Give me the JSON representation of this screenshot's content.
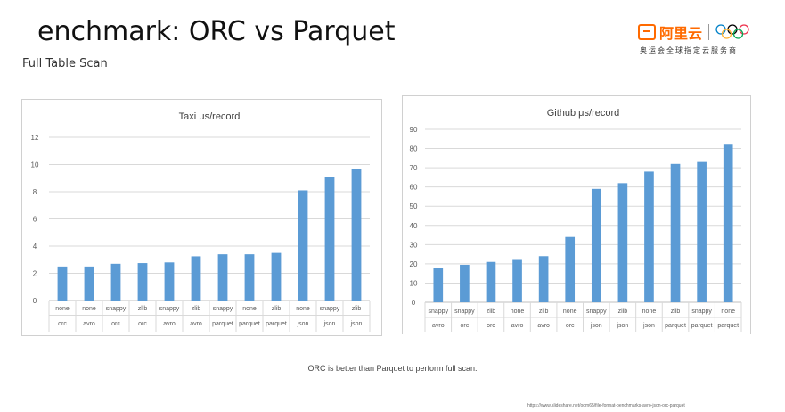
{
  "slide": {
    "title": "enchmark: ORC vs Parquet",
    "subtitle": "Full Table Scan",
    "caption": "ORC is better than Parquet to perform full scan.",
    "footnote": "https://www.slideshare.net/oom65/file-format-benchmarks-avro-json-orc-parquet"
  },
  "logo": {
    "brand": "阿里云",
    "tagline": "奥运会全球指定云服务商",
    "brand_color": "#ff6a00"
  },
  "colors": {
    "bar": "#5b9bd5",
    "grid": "#d9d9d9",
    "axis_text": "#595959"
  },
  "chart_data": [
    {
      "type": "bar",
      "title": "Taxi μs/record",
      "categories": [
        [
          "none",
          "orc"
        ],
        [
          "none",
          "avro"
        ],
        [
          "snappy",
          "orc"
        ],
        [
          "zlib",
          "orc"
        ],
        [
          "snappy",
          "avro"
        ],
        [
          "zlib",
          "avro"
        ],
        [
          "snappy",
          "parquet"
        ],
        [
          "none",
          "parquet"
        ],
        [
          "zlib",
          "parquet"
        ],
        [
          "none",
          "json"
        ],
        [
          "snappy",
          "json"
        ],
        [
          "zlib",
          "json"
        ]
      ],
      "values": [
        2.5,
        2.5,
        2.7,
        2.75,
        2.8,
        3.25,
        3.4,
        3.4,
        3.5,
        8.1,
        9.1,
        9.7
      ],
      "ylim": [
        0,
        12
      ],
      "yticks": [
        0,
        2,
        4,
        6,
        8,
        10,
        12
      ],
      "grid": true
    },
    {
      "type": "bar",
      "title": "Github μs/record",
      "categories": [
        [
          "snappy",
          "avro"
        ],
        [
          "snappy",
          "orc"
        ],
        [
          "zlib",
          "orc"
        ],
        [
          "none",
          "avro"
        ],
        [
          "zlib",
          "avro"
        ],
        [
          "none",
          "orc"
        ],
        [
          "snappy",
          "json"
        ],
        [
          "zlib",
          "json"
        ],
        [
          "none",
          "json"
        ],
        [
          "zlib",
          "parquet"
        ],
        [
          "snappy",
          "parquet"
        ],
        [
          "none",
          "parquet"
        ]
      ],
      "values": [
        18,
        19.5,
        21,
        22.5,
        24,
        34,
        59,
        62,
        68,
        72,
        73,
        82
      ],
      "ylim": [
        0,
        90
      ],
      "yticks": [
        0,
        10,
        20,
        30,
        40,
        50,
        60,
        70,
        80,
        90
      ],
      "grid": true
    }
  ]
}
